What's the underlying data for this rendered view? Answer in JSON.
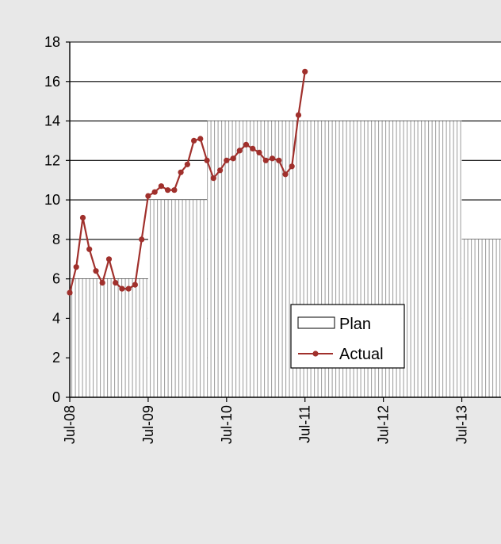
{
  "chart_data": {
    "type": "area",
    "title": "",
    "xlabel": "",
    "ylabel": "",
    "ylim": [
      0,
      18
    ],
    "xlim": [
      "2008-07",
      "2014-01"
    ],
    "y_ticks": [
      "0",
      "2",
      "4",
      "6",
      "8",
      "10",
      "12",
      "14",
      "16",
      "18"
    ],
    "x_ticks": [
      {
        "date": "2008-07",
        "label": "Jul-08"
      },
      {
        "date": "2009-07",
        "label": "Jul-09"
      },
      {
        "date": "2010-07",
        "label": "Jul-10"
      },
      {
        "date": "2011-07",
        "label": "Jul-11"
      },
      {
        "date": "2012-07",
        "label": "Jul-12"
      },
      {
        "date": "2013-07",
        "label": "Jul-13"
      }
    ],
    "grid": "horizontal",
    "legend_position": "bottom-right",
    "series": [
      {
        "name": "Plan",
        "kind": "step-area",
        "color": "#bdbdbd",
        "steps": [
          {
            "from": "2008-07",
            "to": "2009-07",
            "value": 6
          },
          {
            "from": "2009-07",
            "to": "2010-04",
            "value": 10
          },
          {
            "from": "2010-04",
            "to": "2013-07",
            "value": 14
          },
          {
            "from": "2013-07",
            "to": "2014-01",
            "value": 8
          }
        ]
      },
      {
        "name": "Actual",
        "kind": "line",
        "color": "#a0302c",
        "points": [
          {
            "x": "2008-07",
            "y": 5.3
          },
          {
            "x": "2008-08",
            "y": 6.6
          },
          {
            "x": "2008-09",
            "y": 9.1
          },
          {
            "x": "2008-10",
            "y": 7.5
          },
          {
            "x": "2008-11",
            "y": 6.4
          },
          {
            "x": "2008-12",
            "y": 5.8
          },
          {
            "x": "2009-01",
            "y": 7.0
          },
          {
            "x": "2009-02",
            "y": 5.8
          },
          {
            "x": "2009-03",
            "y": 5.5
          },
          {
            "x": "2009-04",
            "y": 5.5
          },
          {
            "x": "2009-05",
            "y": 5.7
          },
          {
            "x": "2009-06",
            "y": 8.0
          },
          {
            "x": "2009-07",
            "y": 10.2
          },
          {
            "x": "2009-08",
            "y": 10.4
          },
          {
            "x": "2009-09",
            "y": 10.7
          },
          {
            "x": "2009-10",
            "y": 10.5
          },
          {
            "x": "2009-11",
            "y": 10.5
          },
          {
            "x": "2009-12",
            "y": 11.4
          },
          {
            "x": "2010-01",
            "y": 11.8
          },
          {
            "x": "2010-02",
            "y": 13.0
          },
          {
            "x": "2010-03",
            "y": 13.1
          },
          {
            "x": "2010-04",
            "y": 12.0
          },
          {
            "x": "2010-05",
            "y": 11.1
          },
          {
            "x": "2010-06",
            "y": 11.5
          },
          {
            "x": "2010-07",
            "y": 12.0
          },
          {
            "x": "2010-08",
            "y": 12.1
          },
          {
            "x": "2010-09",
            "y": 12.5
          },
          {
            "x": "2010-10",
            "y": 12.8
          },
          {
            "x": "2010-11",
            "y": 12.6
          },
          {
            "x": "2010-12",
            "y": 12.4
          },
          {
            "x": "2011-01",
            "y": 12.0
          },
          {
            "x": "2011-02",
            "y": 12.1
          },
          {
            "x": "2011-03",
            "y": 12.0
          },
          {
            "x": "2011-04",
            "y": 11.3
          },
          {
            "x": "2011-05",
            "y": 11.7
          },
          {
            "x": "2011-06",
            "y": 14.3
          },
          {
            "x": "2011-07",
            "y": 16.5
          }
        ]
      }
    ]
  }
}
